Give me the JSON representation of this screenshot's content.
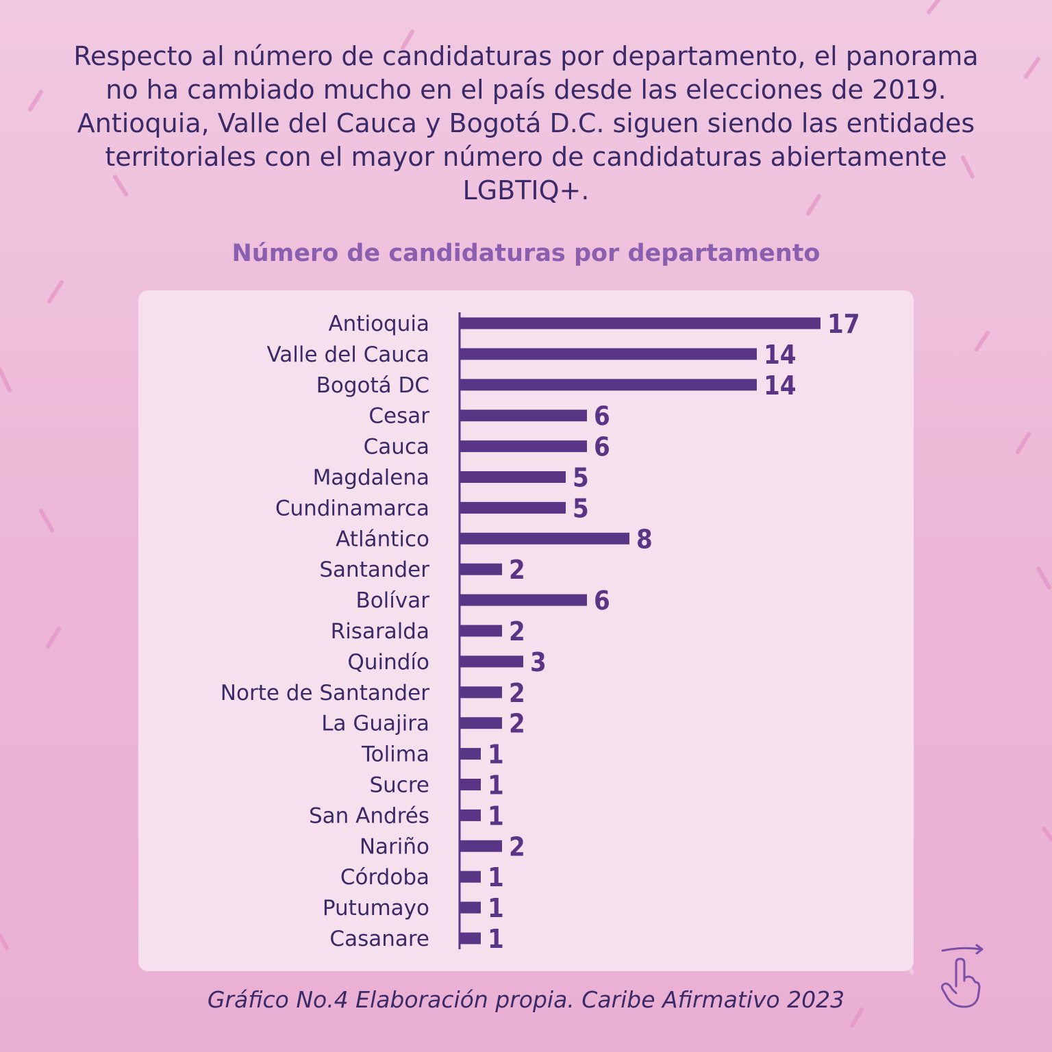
{
  "intro_text": "Respecto al número de candidaturas por departamento, el panorama no ha cambiado mucho en el país desde las elecciones de 2019. Antioquia, Valle del Cauca y Bogotá D.C. siguen siendo las entidades territoriales con el mayor número de candidaturas abiertamente LGBTIQ+.",
  "caption": "Gráfico No.4 Elaboración propia. Caribe Afirmativo 2023",
  "colors": {
    "bar": "#5a3585",
    "background": "#eebed9",
    "panel": "#f6e0ee"
  },
  "icons": {
    "swipe": "swipe-hand-icon"
  },
  "chart_data": {
    "type": "bar",
    "orientation": "horizontal",
    "title": "Número de candidaturas por departamento",
    "categories": [
      "Antioquia",
      "Valle del Cauca",
      "Bogotá DC",
      "Cesar",
      "Cauca",
      "Magdalena",
      "Cundinamarca",
      "Atlántico",
      "Santander",
      "Bolívar",
      "Risaralda",
      "Quindío",
      "Norte de Santander",
      "La Guajira",
      "Tolima",
      "Sucre",
      "San Andrés",
      "Nariño",
      "Córdoba",
      "Putumayo",
      "Casanare"
    ],
    "values": [
      17,
      14,
      14,
      6,
      6,
      5,
      5,
      8,
      2,
      6,
      2,
      3,
      2,
      2,
      1,
      1,
      1,
      2,
      1,
      1,
      1
    ],
    "xlabel": "",
    "ylabel": "",
    "grid": false
  }
}
